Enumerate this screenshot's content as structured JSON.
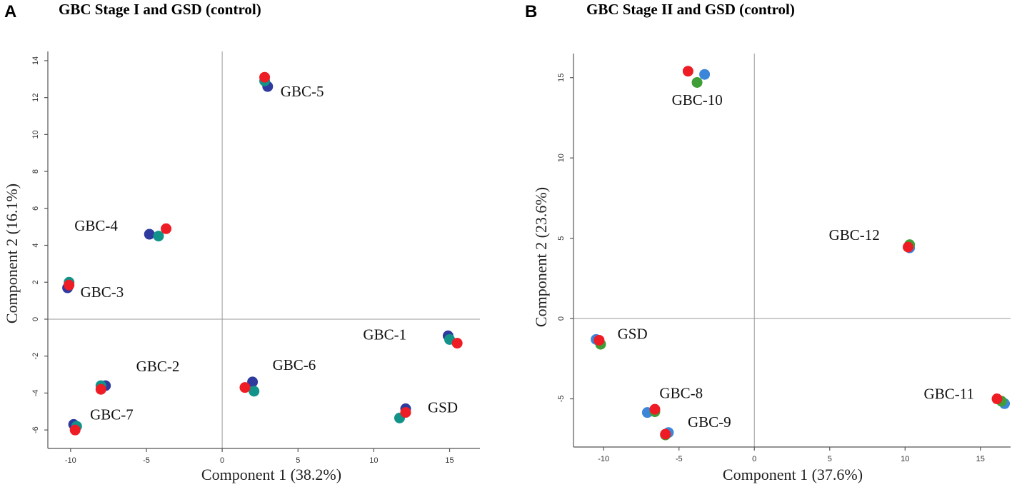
{
  "chart_data": [
    {
      "type": "scatter",
      "panel_letter": "A",
      "title": "GBC Stage I and GSD (control)",
      "xlabel": "Component 1 (38.2%)",
      "ylabel": "Component 2 (16.1%)",
      "xlim": [
        -11.5,
        17
      ],
      "ylim": [
        -7,
        14.5
      ],
      "xticks": [
        -10,
        -5,
        0,
        5,
        10,
        15
      ],
      "yticks": [
        -6,
        -4,
        -2,
        0,
        2,
        4,
        6,
        8,
        10,
        12,
        14
      ],
      "replicate_colors": [
        "#2e3a9e",
        "#12938a",
        "#ee1c24"
      ],
      "groups": [
        {
          "label": "GBC-5",
          "points": [
            [
              3.0,
              12.6
            ],
            [
              2.8,
              12.9
            ],
            [
              2.8,
              13.1
            ]
          ]
        },
        {
          "label": "GBC-4",
          "points": [
            [
              -4.8,
              4.6
            ],
            [
              -4.2,
              4.5
            ],
            [
              -3.7,
              4.9
            ]
          ]
        },
        {
          "label": "GBC-3",
          "points": [
            [
              -10.2,
              1.7
            ],
            [
              -10.1,
              2.0
            ],
            [
              -10.1,
              1.85
            ]
          ]
        },
        {
          "label": "GBC-1",
          "points": [
            [
              14.9,
              -0.9
            ],
            [
              15.0,
              -1.1
            ],
            [
              15.5,
              -1.3
            ]
          ]
        },
        {
          "label": "GBC-2",
          "points": [
            [
              -7.7,
              -3.6
            ],
            [
              -8.0,
              -3.6
            ],
            [
              -8.0,
              -3.8
            ]
          ]
        },
        {
          "label": "GBC-6",
          "points": [
            [
              2.0,
              -3.4
            ],
            [
              2.1,
              -3.9
            ],
            [
              1.5,
              -3.7
            ]
          ]
        },
        {
          "label": "GBC-7",
          "points": [
            [
              -9.8,
              -5.7
            ],
            [
              -9.6,
              -5.8
            ],
            [
              -9.7,
              -6.0
            ]
          ]
        },
        {
          "label": "GSD",
          "points": [
            [
              12.1,
              -4.85
            ],
            [
              11.7,
              -5.35
            ],
            [
              12.1,
              -5.05
            ]
          ]
        }
      ]
    },
    {
      "type": "scatter",
      "panel_letter": "B",
      "title": "GBC Stage II and GSD (control)",
      "xlabel": "Component 1 (37.6%)",
      "ylabel": "Component 2 (23.6%)",
      "xlim": [
        -12,
        17
      ],
      "ylim": [
        -8,
        16.5
      ],
      "xticks": [
        -10,
        -5,
        0,
        5,
        10,
        15
      ],
      "yticks": [
        -5,
        0,
        5,
        10,
        15
      ],
      "replicate_colors": [
        "#3b86d8",
        "#3f9e37",
        "#ee1c24"
      ],
      "groups": [
        {
          "label": "GBC-10",
          "points": [
            [
              -3.3,
              15.2
            ],
            [
              -3.8,
              14.7
            ],
            [
              -4.4,
              15.4
            ]
          ]
        },
        {
          "label": "GBC-12",
          "points": [
            [
              10.3,
              4.4
            ],
            [
              10.3,
              4.6
            ],
            [
              10.2,
              4.45
            ]
          ]
        },
        {
          "label": "GSD",
          "points": [
            [
              -10.5,
              -1.3
            ],
            [
              -10.2,
              -1.6
            ],
            [
              -10.3,
              -1.35
            ]
          ]
        },
        {
          "label": "GBC-8",
          "points": [
            [
              -7.1,
              -5.85
            ],
            [
              -6.6,
              -5.8
            ],
            [
              -6.6,
              -5.65
            ]
          ]
        },
        {
          "label": "GBC-9",
          "points": [
            [
              -5.7,
              -7.1
            ],
            [
              -5.9,
              -7.25
            ],
            [
              -5.9,
              -7.2
            ]
          ]
        },
        {
          "label": "GBC-11",
          "points": [
            [
              16.6,
              -5.3
            ],
            [
              16.4,
              -5.15
            ],
            [
              16.1,
              -5.0
            ]
          ]
        }
      ]
    }
  ]
}
